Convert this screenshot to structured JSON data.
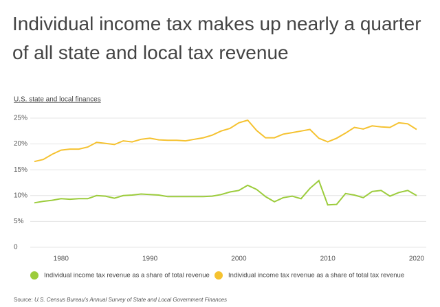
{
  "chart_data": {
    "type": "line",
    "title": "Individual income tax makes up nearly a quarter of all state and local tax revenue",
    "subtitle": "U.S. state and local finances",
    "source_label": "Source:",
    "source": "U.S. Census Bureau's Annual Survey of State and Local Government Finances",
    "x": [
      1977,
      1978,
      1979,
      1980,
      1981,
      1982,
      1983,
      1984,
      1985,
      1986,
      1987,
      1988,
      1989,
      1990,
      1991,
      1992,
      1993,
      1994,
      1995,
      1996,
      1997,
      1998,
      1999,
      2000,
      2001,
      2002,
      2003,
      2004,
      2005,
      2006,
      2007,
      2008,
      2009,
      2010,
      2011,
      2012,
      2013,
      2014,
      2015,
      2016,
      2017,
      2018,
      2019,
      2020
    ],
    "series": [
      {
        "name": "Individual income tax revenue as a share of total revenue",
        "color": "#9ccc3c",
        "values": [
          8.6,
          8.9,
          9.1,
          9.4,
          9.3,
          9.4,
          9.4,
          10.0,
          9.9,
          9.5,
          10.0,
          10.1,
          10.3,
          10.2,
          10.1,
          9.8,
          9.8,
          9.8,
          9.8,
          9.8,
          9.9,
          10.2,
          10.7,
          11.0,
          12.0,
          11.2,
          9.8,
          8.8,
          9.6,
          9.9,
          9.4,
          11.4,
          12.9,
          8.2,
          8.3,
          10.4,
          10.1,
          9.6,
          10.8,
          11.0,
          9.9,
          10.6,
          11.0,
          10.0
        ]
      },
      {
        "name": "Individual income tax revenue as a share of total tax revenue",
        "color": "#f5c230",
        "values": [
          16.6,
          17.0,
          18.0,
          18.8,
          19.0,
          19.0,
          19.4,
          20.3,
          20.1,
          19.9,
          20.6,
          20.4,
          20.9,
          21.1,
          20.8,
          20.7,
          20.7,
          20.6,
          20.9,
          21.2,
          21.7,
          22.5,
          23.0,
          24.1,
          24.6,
          22.6,
          21.2,
          21.2,
          21.9,
          22.2,
          22.5,
          22.8,
          21.1,
          20.4,
          21.1,
          22.1,
          23.2,
          22.9,
          23.5,
          23.3,
          23.2,
          24.1,
          23.9,
          22.8
        ]
      }
    ],
    "xlim": [
      1977,
      2020
    ],
    "xticks": [
      1980,
      1990,
      2000,
      2010,
      2020
    ],
    "ylim": [
      0,
      25
    ],
    "yticks": [
      0,
      {
        "value": 5,
        "label": "5%"
      },
      {
        "value": 10,
        "label": "10%"
      },
      {
        "value": 15,
        "label": "15%"
      },
      {
        "value": 20,
        "label": "20%"
      },
      {
        "value": 25,
        "label": "25%"
      }
    ],
    "grid": true
  }
}
